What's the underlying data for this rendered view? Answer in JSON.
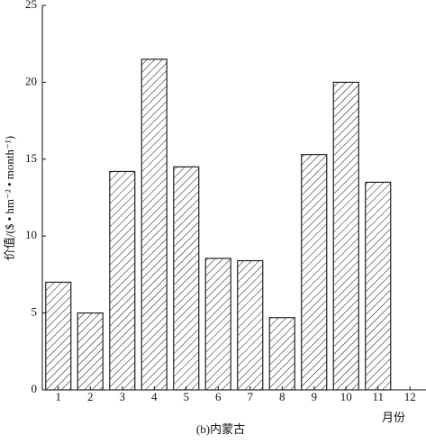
{
  "chart_data": {
    "type": "bar",
    "caption": "(b)内蒙古",
    "x_label": "月份",
    "y_label": "价值/($ • hm⁻² • month⁻¹)",
    "categories": [
      "1",
      "2",
      "3",
      "4",
      "5",
      "6",
      "7",
      "8",
      "9",
      "10",
      "11",
      "12"
    ],
    "values": [
      7.0,
      5.0,
      14.2,
      21.5,
      14.5,
      8.55,
      8.4,
      4.7,
      15.3,
      20.0,
      13.5,
      null
    ],
    "color": "#222222",
    "ylim": [
      0,
      25
    ],
    "yticks": [
      0,
      5,
      10,
      15,
      20,
      25
    ],
    "grid": false
  }
}
